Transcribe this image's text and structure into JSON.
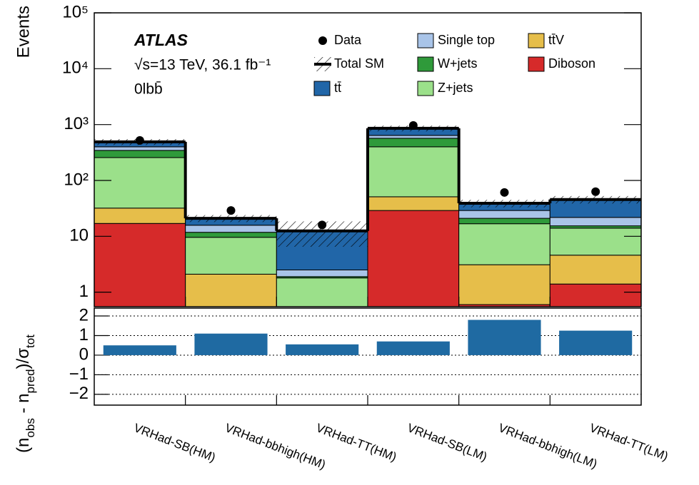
{
  "chart_data": [
    {
      "type": "bar",
      "stacked": true,
      "log_scale": true,
      "experiment": "ATLAS",
      "energy_lumi": "√s=13 TeV, 36.1 fb⁻¹",
      "region": "0lbb̄",
      "ylabel": "Events",
      "ylim": [
        0.55,
        100000
      ],
      "yticks": [
        1,
        10,
        {
          "value": 100,
          "label": "10²"
        },
        {
          "value": 1000,
          "label": "10³"
        },
        {
          "value": 10000,
          "label": "10⁴"
        },
        {
          "value": 100000,
          "label": "10⁵"
        }
      ],
      "series": [
        {
          "name": "Diboson",
          "color": "#d62a2a",
          "values": [
            17,
            0.3,
            0.2,
            29,
            0.6,
            1.4
          ]
        },
        {
          "name": "tt̄V",
          "color": "#e6be4a",
          "values": [
            15,
            1.8,
            0.3,
            22,
            2.5,
            3.2
          ]
        },
        {
          "name": "Z+jets",
          "color": "#9be08a",
          "values": [
            225,
            7.5,
            1.3,
            349,
            13.7,
            9.4
          ]
        },
        {
          "name": "W+jets",
          "color": "#2f9a3a",
          "values": [
            88,
            2.2,
            0.1,
            169,
            4.2,
            1.4
          ]
        },
        {
          "name": "Single top",
          "color": "#a9c4e8",
          "values": [
            55,
            4,
            0.6,
            71,
            8,
            6.4
          ]
        },
        {
          "name": "tt̄",
          "color": "#2166a8",
          "values": [
            90,
            5.2,
            10,
            217,
            10,
            23.8
          ]
        }
      ],
      "data": {
        "name": "Data",
        "values": [
          520,
          29,
          16,
          966,
          61,
          63
        ]
      },
      "total": {
        "name": "Total SM",
        "uncertainty": [
          60,
          3,
          6,
          100,
          6,
          7
        ]
      }
    },
    {
      "type": "bar",
      "ylabel": [
        "(n",
        "obs",
        " - n",
        "pred",
        ")/σ",
        "tot"
      ],
      "categories": [
        "VRHad-SB(HM)",
        "VRHad-bbhigh(HM)",
        "VRHad-TT(HM)",
        "VRHad-SB(LM)",
        "VRHad-bbhigh(LM)",
        "VRHad-TT(LM)"
      ],
      "values": [
        0.5,
        1.1,
        0.55,
        0.7,
        1.8,
        1.25
      ],
      "color": "#1f6aa2",
      "ylim": [
        -2.55,
        2.4
      ],
      "yticks": [
        2,
        1,
        0,
        {
          "value": -1,
          "label": "−1"
        },
        {
          "value": -2,
          "label": "−2"
        }
      ],
      "grid": true
    }
  ]
}
